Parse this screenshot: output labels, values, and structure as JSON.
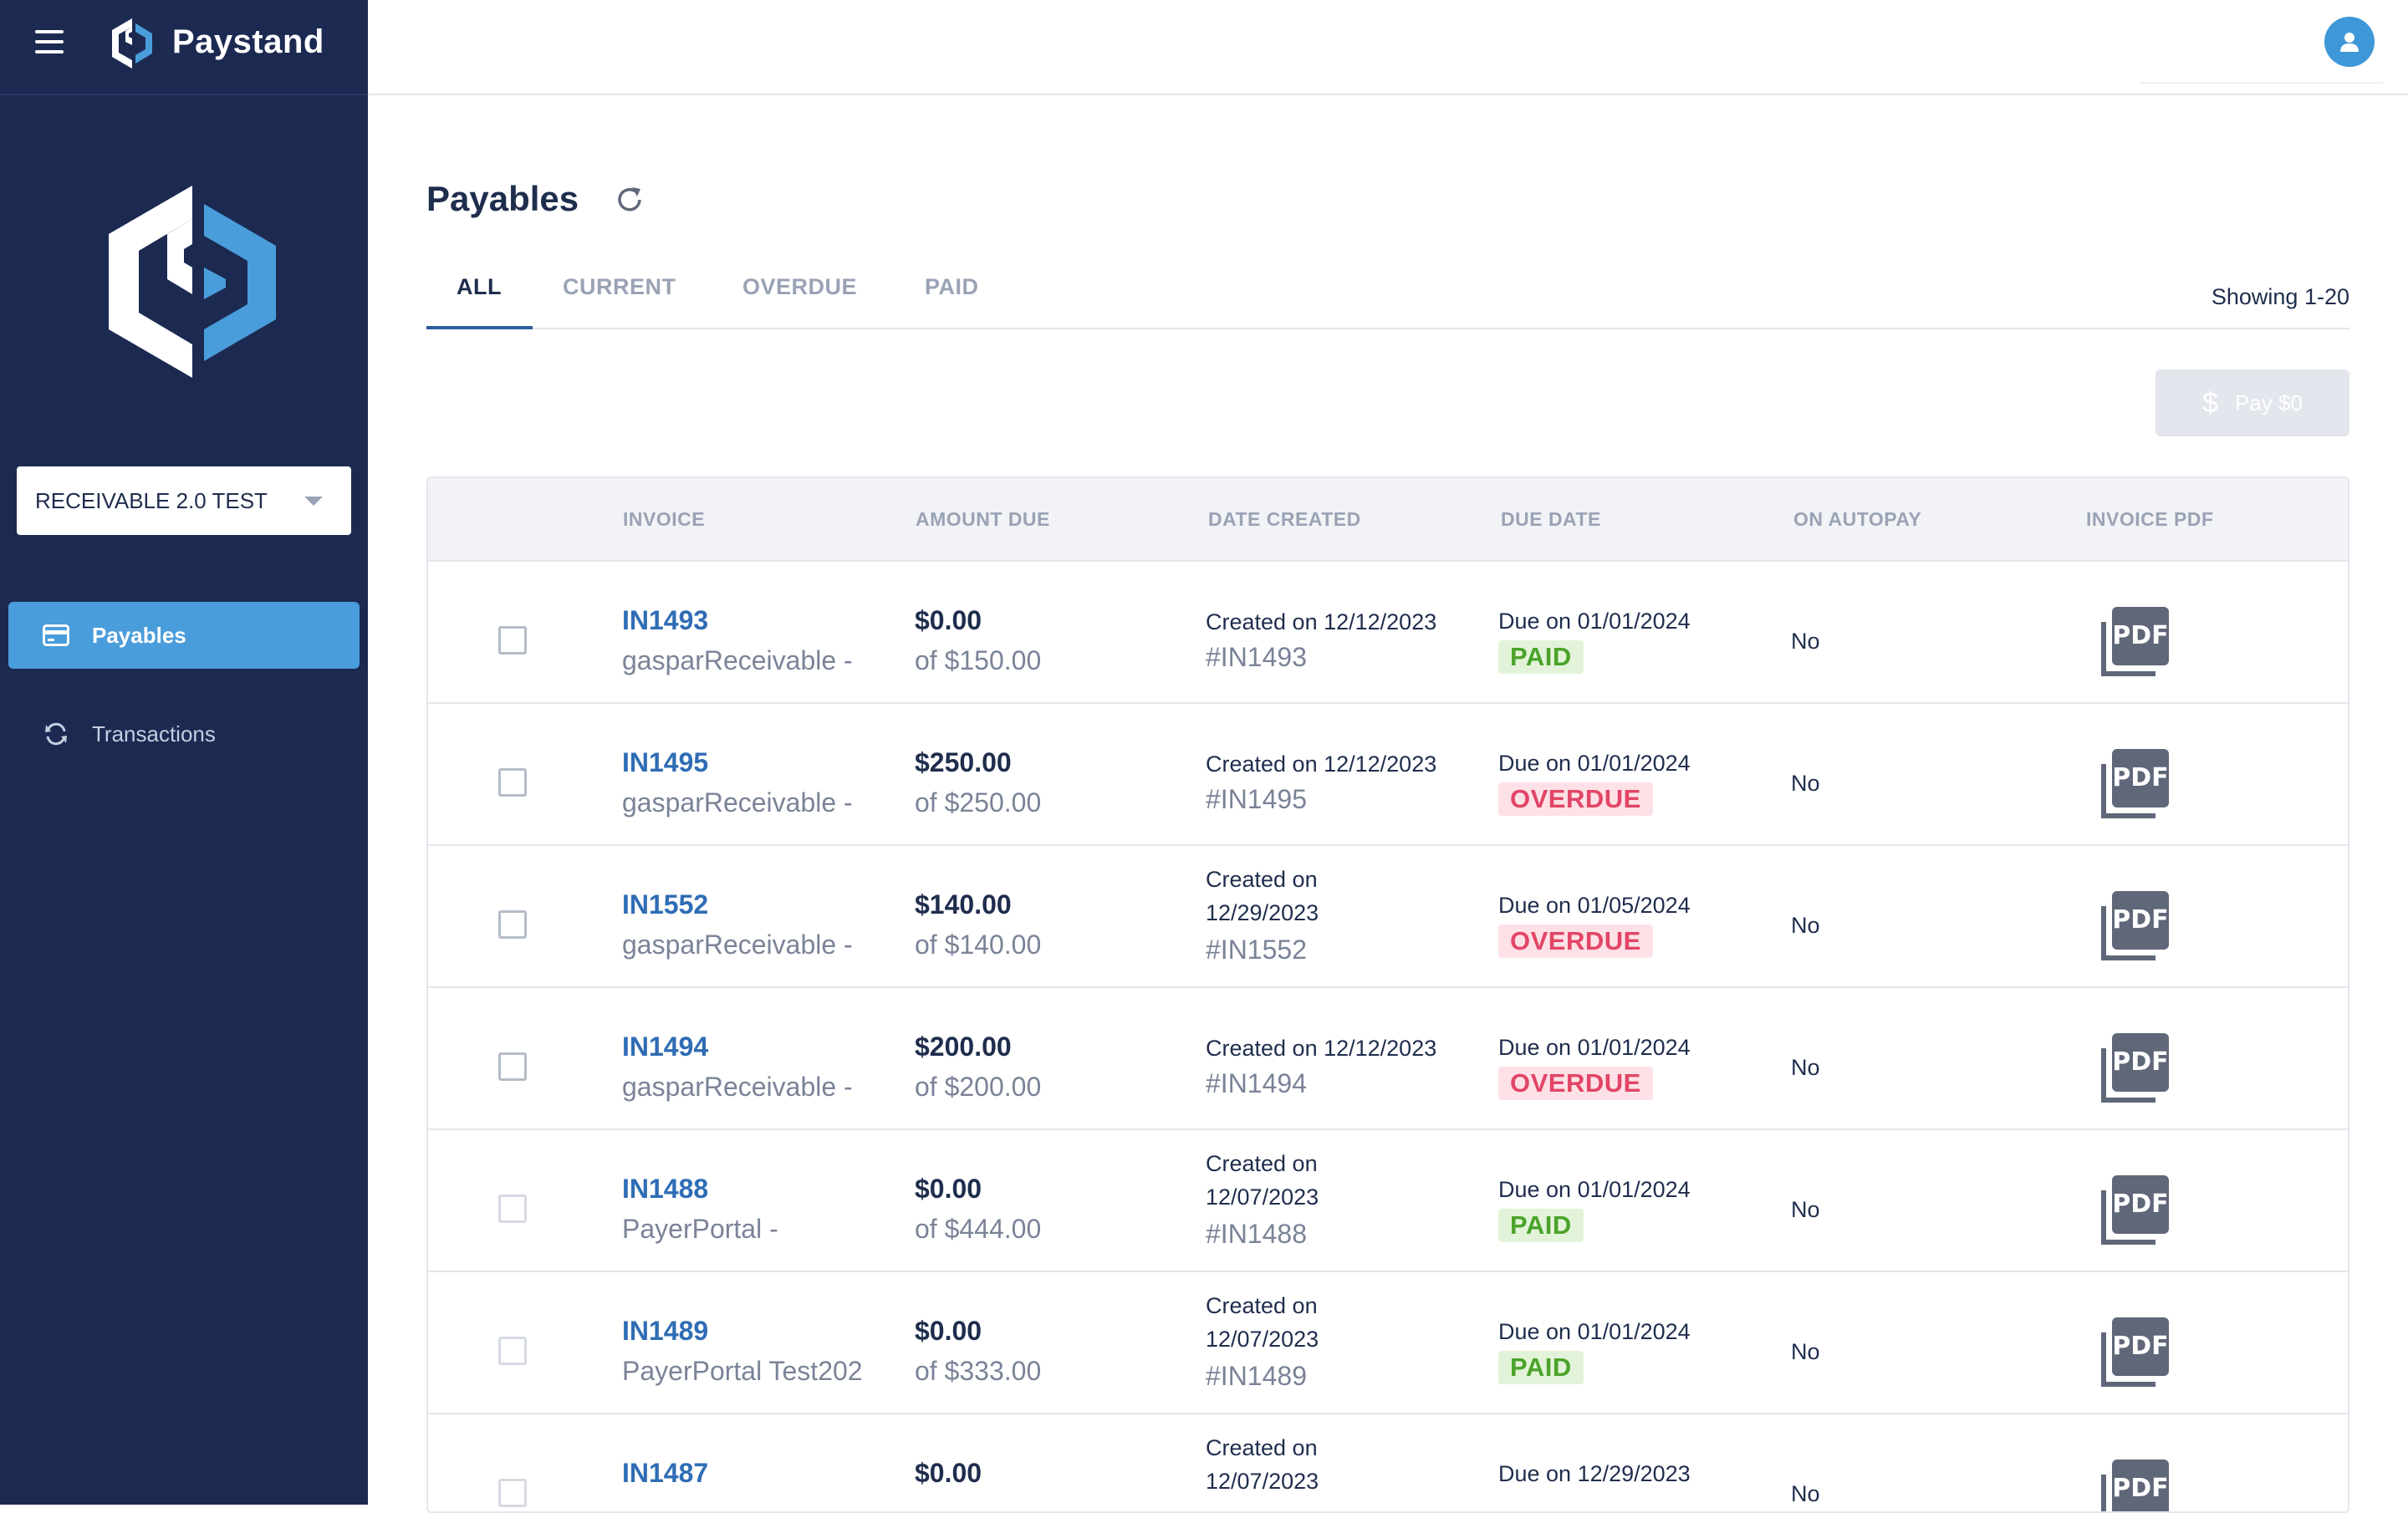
{
  "brand": {
    "name": "Paystand"
  },
  "sidebar": {
    "account": "RECEIVABLE 2.0 TEST",
    "items": [
      {
        "label": "Payables",
        "icon": "credit-card-icon",
        "active": true
      },
      {
        "label": "Transactions",
        "icon": "sync-icon",
        "active": false
      }
    ]
  },
  "main": {
    "title": "Payables",
    "tabs": [
      {
        "label": "ALL",
        "active": true
      },
      {
        "label": "CURRENT",
        "active": false
      },
      {
        "label": "OVERDUE",
        "active": false
      },
      {
        "label": "PAID",
        "active": false
      }
    ],
    "showing": "Showing 1-20",
    "pay_button": "Pay $0"
  },
  "table": {
    "columns": [
      "INVOICE",
      "AMOUNT DUE",
      "DATE CREATED",
      "DUE DATE",
      "ON AUTOPAY",
      "INVOICE PDF"
    ],
    "rows": [
      {
        "invoice": "IN1493",
        "customer": "gasparReceivable -",
        "amount": "$0.00",
        "of": "of $150.00",
        "created": "Created on 12/12/2023",
        "hash": "#IN1493",
        "due": "Due on 01/01/2024",
        "status": "PAID",
        "autopay": "No",
        "pdf": "PDF"
      },
      {
        "invoice": "IN1495",
        "customer": "gasparReceivable -",
        "amount": "$250.00",
        "of": "of $250.00",
        "created": "Created on 12/12/2023",
        "hash": "#IN1495",
        "due": "Due on 01/01/2024",
        "status": "OVERDUE",
        "autopay": "No",
        "pdf": "PDF"
      },
      {
        "invoice": "IN1552",
        "customer": "gasparReceivable -",
        "amount": "$140.00",
        "of": "of $140.00",
        "created": "Created on 12/29/2023",
        "hash": "#IN1552",
        "due": "Due on 01/05/2024",
        "status": "OVERDUE",
        "autopay": "No",
        "pdf": "PDF"
      },
      {
        "invoice": "IN1494",
        "customer": "gasparReceivable -",
        "amount": "$200.00",
        "of": "of $200.00",
        "created": "Created on 12/12/2023",
        "hash": "#IN1494",
        "due": "Due on 01/01/2024",
        "status": "OVERDUE",
        "autopay": "No",
        "pdf": "PDF"
      },
      {
        "invoice": "IN1488",
        "customer": "PayerPortal -",
        "amount": "$0.00",
        "of": "of $444.00",
        "created": "Created on 12/07/2023",
        "hash": "#IN1488",
        "due": "Due on 01/01/2024",
        "status": "PAID",
        "autopay": "No",
        "pdf": "PDF"
      },
      {
        "invoice": "IN1489",
        "customer": "PayerPortal Test202",
        "amount": "$0.00",
        "of": "of $333.00",
        "created": "Created on 12/07/2023",
        "hash": "#IN1489",
        "due": "Due on 01/01/2024",
        "status": "PAID",
        "autopay": "No",
        "pdf": "PDF"
      },
      {
        "invoice": "IN1487",
        "customer": "",
        "amount": "$0.00",
        "of": "",
        "created": "Created on 12/07/2023",
        "hash": "",
        "due": "Due on 12/29/2023",
        "status": "",
        "autopay": "No",
        "pdf": "PDF"
      }
    ]
  },
  "colors": {
    "sidebar_bg": "#1c2a52",
    "accent": "#4a9ddb",
    "link": "#2f6db5",
    "paid": "#4aa32a",
    "overdue": "#e24566"
  }
}
